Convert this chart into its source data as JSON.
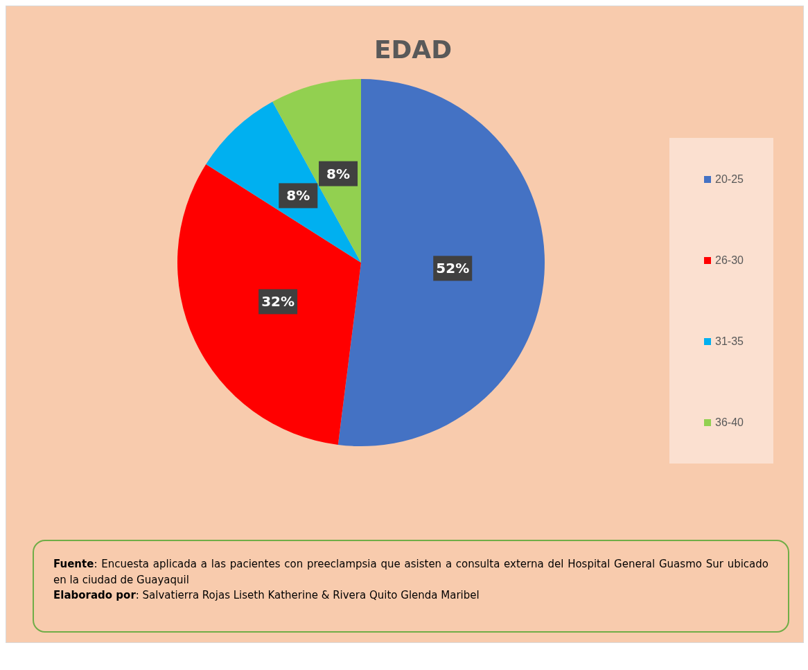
{
  "chart_data": {
    "type": "pie",
    "title": "EDAD",
    "categories": [
      "20-25",
      "26-30",
      "31-35",
      "36-40"
    ],
    "values": [
      52,
      32,
      8,
      8
    ],
    "colors": [
      "#4472c4",
      "#ff0000",
      "#00b0f0",
      "#92d050"
    ],
    "value_labels": [
      "52%",
      "32%",
      "8%",
      "8%"
    ],
    "legend": "right",
    "annotations": [
      "Fuente: Encuesta aplicada a las pacientes con preeclampsia que asisten a consulta externa del Hospital General Guasmo Sur ubicado en la ciudad de Guayaquil",
      "Elaborado por: Salvatierra Rojas Liseth Katherine & Rivera Quito Glenda Maribel"
    ]
  }
}
